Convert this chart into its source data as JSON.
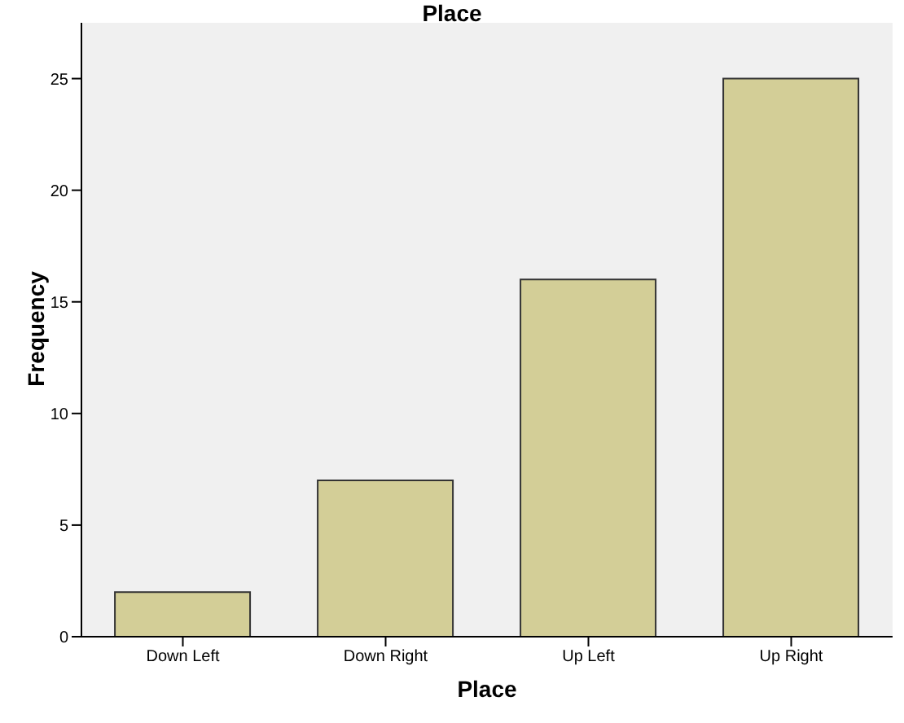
{
  "chart_data": {
    "type": "bar",
    "title": "Place",
    "xlabel": "Place",
    "ylabel": "Frequency",
    "categories": [
      "Down Left",
      "Down Right",
      "Up Left",
      "Up Right"
    ],
    "values": [
      2,
      7,
      16,
      25
    ],
    "color": "#d3ce97",
    "ylim": [
      0,
      27.5
    ],
    "yticks": [
      0,
      5,
      10,
      15,
      20,
      25
    ],
    "grid": false
  }
}
